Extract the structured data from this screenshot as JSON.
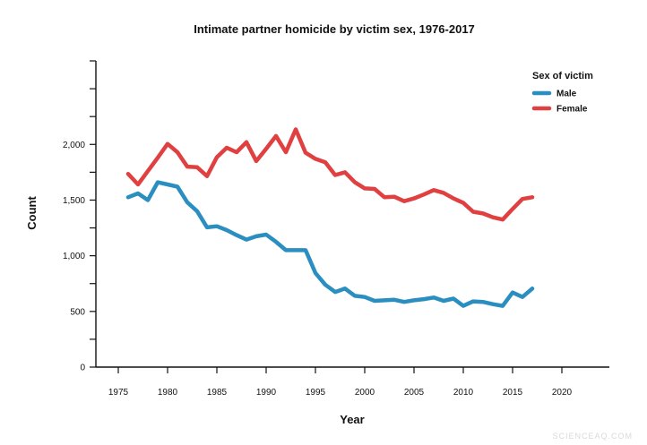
{
  "chart_data": {
    "type": "line",
    "title": "Intimate partner homicide by victim sex, 1976-2017",
    "xlabel": "Year",
    "ylabel": "Count",
    "xlim": [
      1970,
      2025
    ],
    "ylim": [
      0,
      2750
    ],
    "x_ticks": [
      1975,
      1980,
      1985,
      1990,
      1995,
      2000,
      2005,
      2010,
      2015,
      2020
    ],
    "x_tick_labels": [
      "1975",
      "1980",
      "1985",
      "1990",
      "1995",
      "2000",
      "2005",
      "2010",
      "2015",
      "2020"
    ],
    "y_ticks": [
      0,
      250,
      500,
      750,
      1000,
      1250,
      1500,
      1750,
      2000,
      2250,
      2500,
      2750
    ],
    "y_tick_labels": [
      {
        "value": 0,
        "label": "0"
      },
      {
        "value": 500,
        "label": "500"
      },
      {
        "value": 1000,
        "label": "1,000"
      },
      {
        "value": 1500,
        "label": "1,500"
      },
      {
        "value": 2000,
        "label": "2,000"
      }
    ],
    "grid": false,
    "legend": {
      "title": "Sex of victim",
      "position": "top-right"
    },
    "x": [
      1976,
      1977,
      1978,
      1979,
      1980,
      1981,
      1982,
      1983,
      1984,
      1985,
      1986,
      1987,
      1988,
      1989,
      1990,
      1991,
      1992,
      1993,
      1994,
      1995,
      1996,
      1997,
      1998,
      1999,
      2000,
      2001,
      2002,
      2003,
      2004,
      2005,
      2006,
      2007,
      2008,
      2009,
      2010,
      2011,
      2012,
      2013,
      2014,
      2015,
      2016,
      2017
    ],
    "series": [
      {
        "name": "Male",
        "color": "#2a8fc0",
        "values": [
          1525,
          1560,
          1500,
          1660,
          1640,
          1620,
          1480,
          1400,
          1255,
          1265,
          1230,
          1185,
          1145,
          1175,
          1190,
          1125,
          1050,
          1050,
          1050,
          845,
          740,
          675,
          705,
          640,
          630,
          595,
          600,
          605,
          585,
          600,
          610,
          625,
          595,
          615,
          550,
          590,
          585,
          565,
          550,
          670,
          630,
          705
        ]
      },
      {
        "name": "Female",
        "color": "#e04040",
        "values": [
          1735,
          1640,
          1760,
          1880,
          2005,
          1930,
          1800,
          1795,
          1715,
          1885,
          1970,
          1930,
          2020,
          1850,
          1960,
          2075,
          1930,
          2135,
          1925,
          1870,
          1840,
          1725,
          1750,
          1660,
          1605,
          1600,
          1525,
          1530,
          1490,
          1515,
          1550,
          1590,
          1565,
          1515,
          1475,
          1395,
          1380,
          1345,
          1325,
          1420,
          1510,
          1525
        ]
      }
    ]
  },
  "watermark": "SCIENCEAQ.COM"
}
